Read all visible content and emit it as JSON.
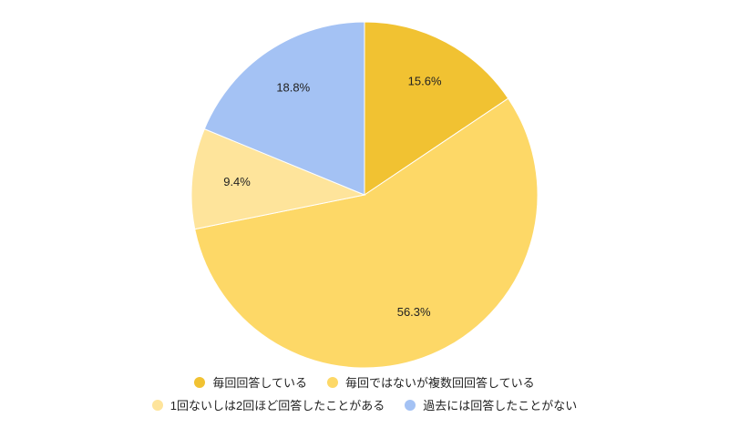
{
  "chart_data": {
    "type": "pie",
    "categories": [
      "毎回回答している",
      "毎回ではないが複数回回答している",
      "1回ないしは2回ほど回答したことがある",
      "過去には回答したことがない"
    ],
    "values": [
      15.6,
      56.3,
      9.4,
      18.8
    ],
    "value_labels": [
      "15.6%",
      "56.3%",
      "9.4%",
      "18.8%"
    ],
    "colors": [
      "#f1c232",
      "#fdd867",
      "#fee49b",
      "#a4c2f4"
    ]
  }
}
